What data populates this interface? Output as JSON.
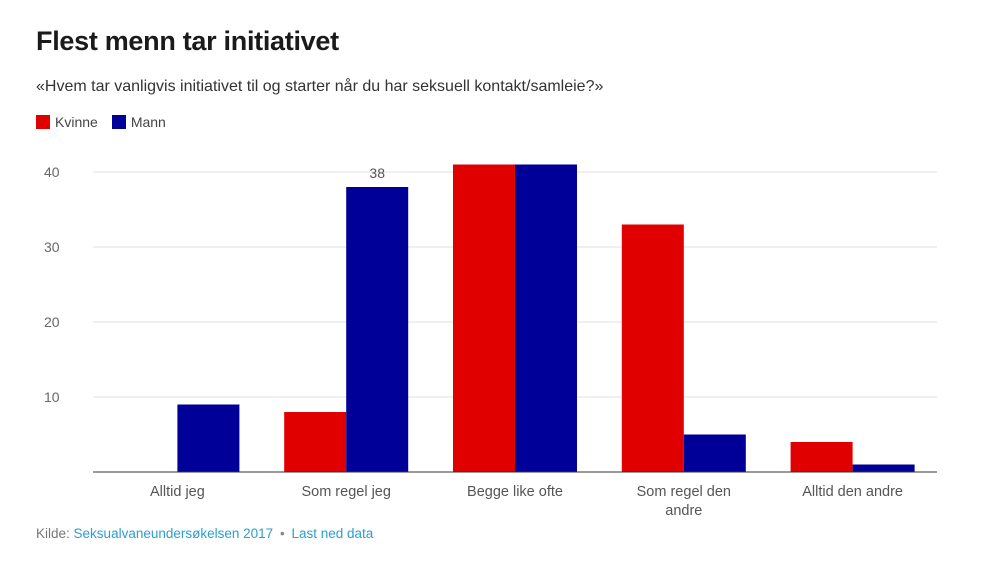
{
  "header": {
    "title": "Flest menn tar initiativet",
    "subtitle": "«Hvem tar vanligvis initiativet til og starter når du har seksuell kontakt/samleie?»"
  },
  "legend": [
    {
      "label": "Kvinne",
      "color": "#e00000"
    },
    {
      "label": "Mann",
      "color": "#000099"
    }
  ],
  "footer": {
    "source_prefix": "Kilde:",
    "source_link": "Seksualvaneundersøkelsen 2017",
    "separator": "•",
    "download_link": "Last ned data"
  },
  "chart_data": {
    "type": "bar",
    "title": "Flest menn tar initiativet",
    "categories": [
      "Alltid jeg",
      "Som regel jeg",
      "Begge like ofte",
      "Som regel den andre",
      "Alltid den andre"
    ],
    "category_lines": [
      [
        "Alltid jeg"
      ],
      [
        "Som regel jeg"
      ],
      [
        "Begge like ofte"
      ],
      [
        "Som regel den",
        "andre"
      ],
      [
        "Alltid den andre"
      ]
    ],
    "series": [
      {
        "name": "Kvinne",
        "color": "#e00000",
        "values": [
          0,
          8,
          41,
          33,
          4
        ]
      },
      {
        "name": "Mann",
        "color": "#000099",
        "values": [
          9,
          38,
          41,
          5,
          1
        ]
      }
    ],
    "yticks": [
      10,
      20,
      30,
      40
    ],
    "ylim": [
      0,
      40
    ],
    "grid": true,
    "annotations": [
      {
        "series": "Mann",
        "category": "Som regel jeg",
        "text": "38"
      }
    ],
    "xlabel": "",
    "ylabel": ""
  }
}
